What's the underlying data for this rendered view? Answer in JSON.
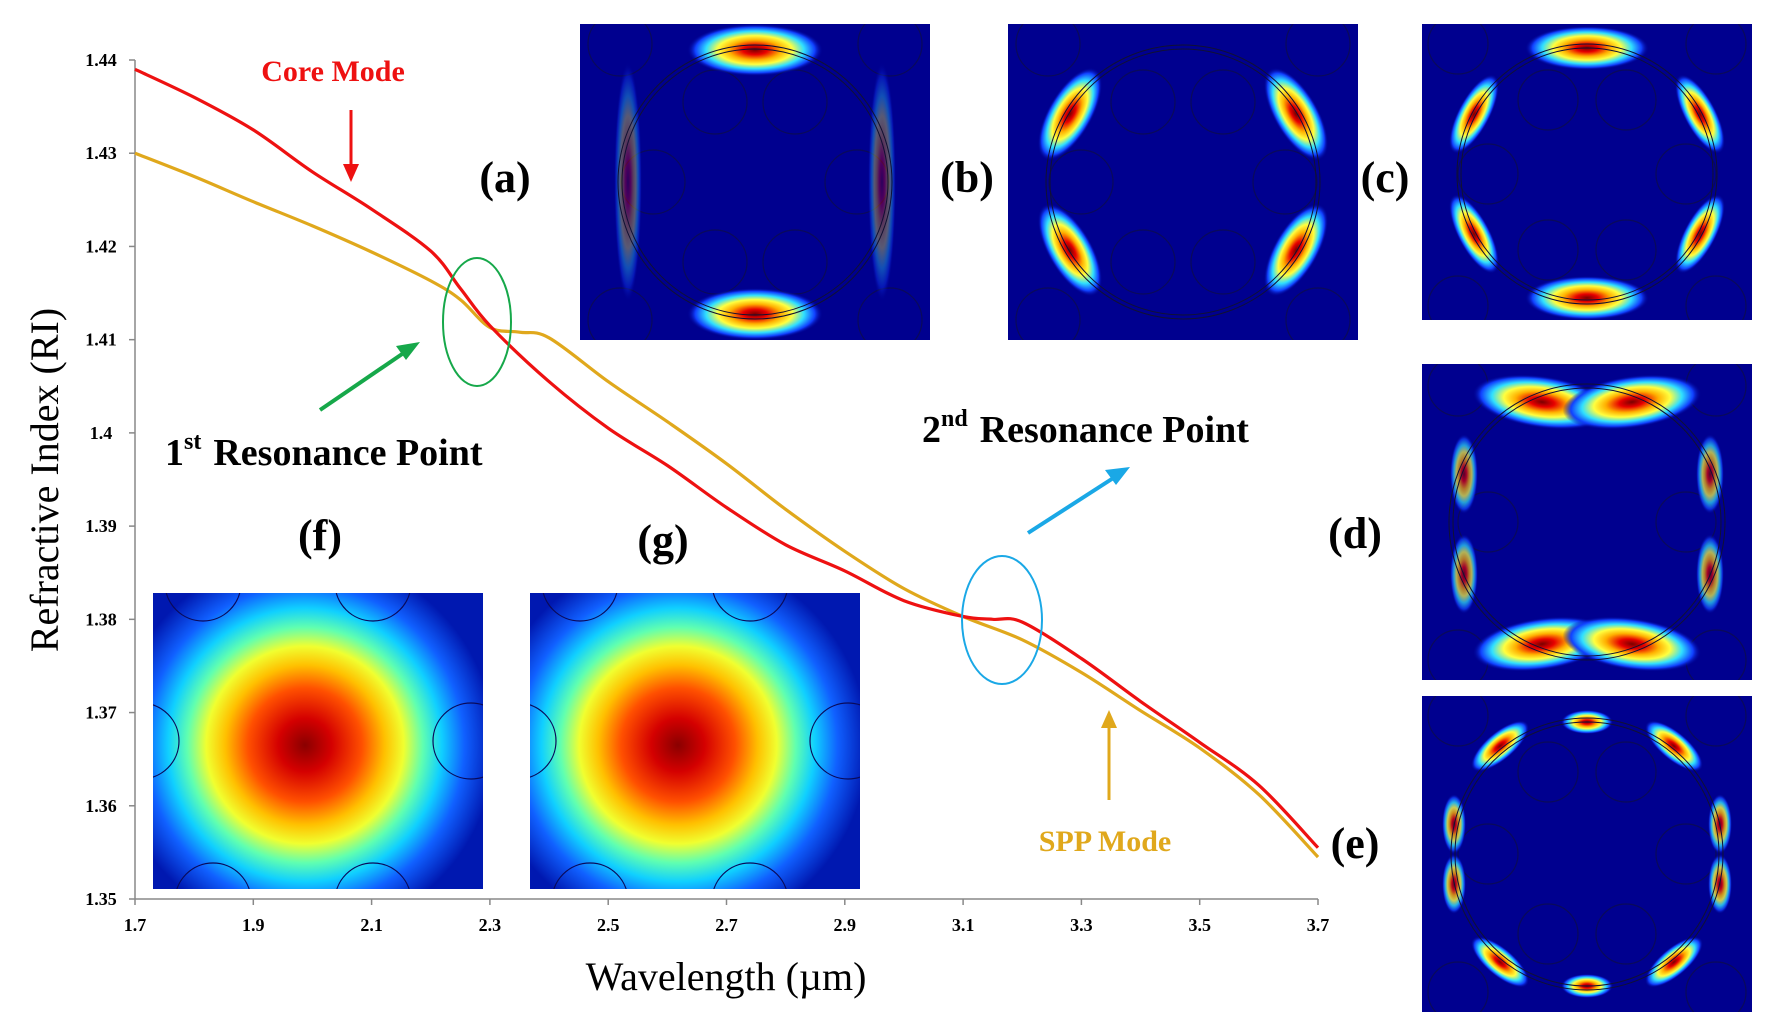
{
  "chart_data": {
    "type": "line",
    "title": "",
    "xlabel": "Wavelength (µm)",
    "ylabel": "Refractive Index (RI)",
    "xlim": [
      1.7,
      3.7
    ],
    "ylim": [
      1.35,
      1.44
    ],
    "x_ticks": [
      "1.7",
      "1.9",
      "2.1",
      "2.3",
      "2.5",
      "2.7",
      "2.9",
      "3.1",
      "3.3",
      "3.5",
      "3.7"
    ],
    "y_ticks": [
      "1.35",
      "1.36",
      "1.37",
      "1.38",
      "1.39",
      "1.4",
      "1.41",
      "1.42",
      "1.43",
      "1.44"
    ],
    "grid": false,
    "series": [
      {
        "name": "Core Mode",
        "color": "#ee1111",
        "x": [
          1.7,
          1.8,
          1.9,
          2.0,
          2.1,
          2.2,
          2.25,
          2.3,
          2.4,
          2.5,
          2.6,
          2.7,
          2.8,
          2.9,
          3.0,
          3.1,
          3.15,
          3.2,
          3.3,
          3.4,
          3.5,
          3.6,
          3.7
        ],
        "y": [
          1.439,
          1.436,
          1.4325,
          1.428,
          1.424,
          1.4195,
          1.4155,
          1.4115,
          1.4055,
          1.4005,
          1.3965,
          1.392,
          1.388,
          1.3852,
          1.382,
          1.3803,
          1.38,
          1.3797,
          1.3758,
          1.3712,
          1.3668,
          1.3622,
          1.3555
        ]
      },
      {
        "name": "SPP Mode",
        "color": "#e0a81c",
        "x": [
          1.7,
          1.8,
          1.9,
          2.0,
          2.1,
          2.2,
          2.25,
          2.3,
          2.35,
          2.4,
          2.5,
          2.6,
          2.7,
          2.8,
          2.9,
          3.0,
          3.1,
          3.2,
          3.3,
          3.4,
          3.5,
          3.6,
          3.7
        ],
        "y": [
          1.43,
          1.4275,
          1.4248,
          1.4222,
          1.4194,
          1.4163,
          1.4143,
          1.4113,
          1.4108,
          1.4102,
          1.4055,
          1.4012,
          1.3967,
          1.3918,
          1.3873,
          1.3833,
          1.3803,
          1.3778,
          1.3743,
          1.3702,
          1.3662,
          1.3612,
          1.3545
        ]
      }
    ],
    "annotations": [
      {
        "kind": "series-label",
        "text": "Core Mode",
        "color": "#ee1111",
        "arrow_to": [
          2.05,
          1.4257
        ]
      },
      {
        "kind": "series-label",
        "text": "SPP Mode",
        "color": "#e0a81c",
        "arrow_to": [
          3.35,
          1.3718
        ]
      },
      {
        "kind": "resonance",
        "prefix": "1",
        "sup": "st",
        "text": "Resonance Point",
        "color": "#16a84a",
        "center": [
          2.29,
          1.412
        ]
      },
      {
        "kind": "resonance",
        "prefix": "2",
        "sup": "nd",
        "text": "Resonance Point",
        "color": "#1aa8e6",
        "center": [
          3.18,
          1.3795
        ]
      }
    ]
  },
  "panels": {
    "a": "(a)",
    "b": "(b)",
    "c": "(c)",
    "d": "(d)",
    "e": "(e)",
    "f": "(f)",
    "g": "(g)"
  },
  "colors": {
    "field_background": "#00008f",
    "field_hot": "#c00000",
    "field_warm": "#ffff00",
    "field_cool": "#00c8ff"
  }
}
